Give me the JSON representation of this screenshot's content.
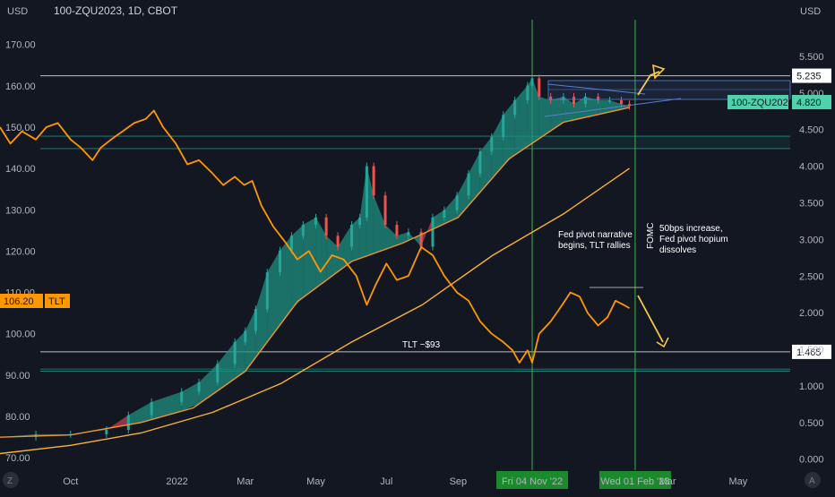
{
  "header": {
    "symbol_title": "100-ZQU2023, 1D, CBOT",
    "left_currency": "USD",
    "right_currency": "USD",
    "corner_left": "Z",
    "corner_right": "A"
  },
  "colors": {
    "background": "#131722",
    "tlt_line": "#ff9800",
    "ma_slow": "#f9b233",
    "ma_fast": "#f0952c",
    "candle_up": "#26a69a",
    "candle_down": "#ef5350",
    "ribbon_up": "#1f8f80",
    "ribbon_down": "#c2404a",
    "zq_badge": "#4fd1ab",
    "green_vline": "#3bb54a",
    "channel_blue": "#5b7fd6",
    "arrow_yellow": "#f7c948"
  },
  "chart_data": {
    "type": "line",
    "x_axis": {
      "tick_labels": [
        "Oct",
        "2022",
        "Mar",
        "May",
        "Jul",
        "Sep",
        "Fri 04 Nov '22",
        "Wed 01 Feb '23",
        "Mar",
        "May"
      ],
      "range": [
        "2021-08-01",
        "2023-06-15"
      ]
    },
    "left_axis": {
      "unit": "USD",
      "ticks": [
        "170.00",
        "160.00",
        "150.00",
        "140.00",
        "130.00",
        "120.00",
        "110.00",
        "100.00",
        "90.00",
        "80.00",
        "70.00"
      ],
      "range": [
        67,
        176
      ]
    },
    "right_axis": {
      "unit": "USD",
      "ticks": [
        "5.500",
        "5.000",
        "4.500",
        "4.000",
        "3.500",
        "3.000",
        "2.500",
        "2.000",
        "1.500",
        "1.000",
        "0.500",
        "0.000"
      ],
      "range": [
        -0.15,
        6.0
      ]
    },
    "series": [
      {
        "name": "TLT",
        "axis": "left",
        "last_value": "106.20",
        "points": [
          [
            "2021-08-01",
            150
          ],
          [
            "2021-08-10",
            146
          ],
          [
            "2021-08-20",
            149
          ],
          [
            "2021-09-01",
            147
          ],
          [
            "2021-09-10",
            150
          ],
          [
            "2021-09-20",
            151
          ],
          [
            "2021-10-01",
            147
          ],
          [
            "2021-10-10",
            145
          ],
          [
            "2021-10-20",
            142
          ],
          [
            "2021-10-27",
            145
          ],
          [
            "2021-11-05",
            147
          ],
          [
            "2021-11-15",
            149
          ],
          [
            "2021-11-25",
            151
          ],
          [
            "2021-12-05",
            152
          ],
          [
            "2021-12-12",
            154
          ],
          [
            "2021-12-20",
            150
          ],
          [
            "2021-12-31",
            146
          ],
          [
            "2022-01-10",
            141
          ],
          [
            "2022-01-20",
            142
          ],
          [
            "2022-01-31",
            139
          ],
          [
            "2022-02-10",
            136
          ],
          [
            "2022-02-20",
            138
          ],
          [
            "2022-02-28",
            136
          ],
          [
            "2022-03-07",
            137
          ],
          [
            "2022-03-15",
            131
          ],
          [
            "2022-03-25",
            126
          ],
          [
            "2022-04-05",
            122
          ],
          [
            "2022-04-15",
            118
          ],
          [
            "2022-04-25",
            120
          ],
          [
            "2022-05-05",
            115
          ],
          [
            "2022-05-15",
            119
          ],
          [
            "2022-05-25",
            118
          ],
          [
            "2022-06-05",
            114
          ],
          [
            "2022-06-14",
            107
          ],
          [
            "2022-06-22",
            112
          ],
          [
            "2022-07-01",
            117
          ],
          [
            "2022-07-10",
            113
          ],
          [
            "2022-07-20",
            114
          ],
          [
            "2022-07-31",
            121
          ],
          [
            "2022-08-10",
            119
          ],
          [
            "2022-08-20",
            114
          ],
          [
            "2022-08-31",
            110
          ],
          [
            "2022-09-10",
            108
          ],
          [
            "2022-09-20",
            103
          ],
          [
            "2022-09-30",
            100
          ],
          [
            "2022-10-10",
            98
          ],
          [
            "2022-10-18",
            96
          ],
          [
            "2022-10-24",
            93
          ],
          [
            "2022-10-31",
            96
          ],
          [
            "2022-11-04",
            93
          ],
          [
            "2022-11-10",
            100
          ],
          [
            "2022-11-20",
            103
          ],
          [
            "2022-11-30",
            107
          ],
          [
            "2022-12-07",
            110
          ],
          [
            "2022-12-15",
            109
          ],
          [
            "2022-12-22",
            105
          ],
          [
            "2022-12-31",
            102
          ],
          [
            "2023-01-08",
            104
          ],
          [
            "2023-01-15",
            108
          ],
          [
            "2023-01-22",
            107
          ],
          [
            "2023-01-27",
            106.2
          ]
        ]
      },
      {
        "name": "100-ZQU2023",
        "axis": "right",
        "style": "candles with moving-average ribbon",
        "last_value": "4.820",
        "points": [
          [
            "2021-08-01",
            0.3
          ],
          [
            "2021-09-01",
            0.34
          ],
          [
            "2021-10-01",
            0.34
          ],
          [
            "2021-11-01",
            0.4
          ],
          [
            "2021-11-20",
            0.6
          ],
          [
            "2021-12-10",
            0.78
          ],
          [
            "2022-01-05",
            0.92
          ],
          [
            "2022-01-20",
            1.05
          ],
          [
            "2022-02-05",
            1.3
          ],
          [
            "2022-02-20",
            1.6
          ],
          [
            "2022-03-01",
            1.75
          ],
          [
            "2022-03-10",
            2.05
          ],
          [
            "2022-03-20",
            2.55
          ],
          [
            "2022-03-31",
            2.85
          ],
          [
            "2022-04-10",
            3.05
          ],
          [
            "2022-04-20",
            3.2
          ],
          [
            "2022-05-01",
            3.3
          ],
          [
            "2022-05-10",
            3.05
          ],
          [
            "2022-05-20",
            2.9
          ],
          [
            "2022-06-01",
            3.2
          ],
          [
            "2022-06-08",
            3.3
          ],
          [
            "2022-06-14",
            4.0
          ],
          [
            "2022-06-20",
            3.6
          ],
          [
            "2022-06-30",
            3.2
          ],
          [
            "2022-07-10",
            3.05
          ],
          [
            "2022-07-20",
            3.1
          ],
          [
            "2022-07-31",
            2.9
          ],
          [
            "2022-08-10",
            3.3
          ],
          [
            "2022-08-20",
            3.4
          ],
          [
            "2022-08-31",
            3.6
          ],
          [
            "2022-09-10",
            3.9
          ],
          [
            "2022-09-20",
            4.2
          ],
          [
            "2022-09-30",
            4.4
          ],
          [
            "2022-10-10",
            4.7
          ],
          [
            "2022-10-20",
            4.9
          ],
          [
            "2022-10-31",
            5.1
          ],
          [
            "2022-11-04",
            5.2
          ],
          [
            "2022-11-10",
            4.95
          ],
          [
            "2022-11-20",
            4.9
          ],
          [
            "2022-12-01",
            4.95
          ],
          [
            "2022-12-10",
            4.85
          ],
          [
            "2022-12-20",
            4.95
          ],
          [
            "2022-12-31",
            4.9
          ],
          [
            "2023-01-10",
            4.9
          ],
          [
            "2023-01-20",
            4.85
          ],
          [
            "2023-01-27",
            4.82
          ]
        ]
      }
    ],
    "moving_averages": [
      {
        "axis": "left",
        "role": "slow",
        "points": [
          [
            "2021-08-01",
            71
          ],
          [
            "2021-10-01",
            73
          ],
          [
            "2021-12-01",
            76
          ],
          [
            "2022-02-01",
            81
          ],
          [
            "2022-04-01",
            88
          ],
          [
            "2022-06-01",
            98
          ],
          [
            "2022-08-01",
            107
          ],
          [
            "2022-10-01",
            119
          ],
          [
            "2022-12-01",
            129
          ],
          [
            "2023-01-27",
            140
          ]
        ]
      },
      {
        "axis": "right",
        "role": "fast",
        "points": [
          [
            "2021-08-01",
            0.3
          ],
          [
            "2021-10-01",
            0.33
          ],
          [
            "2021-12-01",
            0.5
          ],
          [
            "2022-01-15",
            0.7
          ],
          [
            "2022-03-01",
            1.2
          ],
          [
            "2022-04-15",
            2.15
          ],
          [
            "2022-06-01",
            2.7
          ],
          [
            "2022-07-15",
            2.95
          ],
          [
            "2022-09-01",
            3.3
          ],
          [
            "2022-10-15",
            4.1
          ],
          [
            "2022-12-01",
            4.6
          ],
          [
            "2023-01-27",
            4.8
          ]
        ]
      }
    ],
    "horizontal_levels": [
      {
        "value": 5.235,
        "label": "5.235",
        "axis": "right",
        "color": "#d1d4dc",
        "labeled": true
      },
      {
        "value": 1.465,
        "label": "1.465",
        "axis": "right",
        "color": "#d1d4dc",
        "labeled": true
      },
      {
        "value": 4.41,
        "axis": "right",
        "color": "#26a69a",
        "labeled": false
      },
      {
        "value": 4.24,
        "axis": "right",
        "color": "#26a69a",
        "labeled": false
      },
      {
        "value": 1.23,
        "axis": "right",
        "color": "#26a69a",
        "labeled": false
      },
      {
        "value": 1.2,
        "axis": "right",
        "color": "#26a69a",
        "labeled": false
      }
    ],
    "vertical_lines": [
      {
        "date": "2022-11-04",
        "label": "Fri 04 Nov '22"
      },
      {
        "date": "2023-02-01",
        "label": "Wed 01 Feb '23"
      }
    ],
    "annotations": [
      {
        "text": [
          "Fed pivot narrative",
          "begins, TLT rallies"
        ]
      },
      {
        "text": [
          "FOMC"
        ],
        "rotated": true
      },
      {
        "text": [
          "50bps increase,",
          "Fed pivot hopium",
          "dissolves"
        ]
      },
      {
        "text": [
          "TLT ~$93"
        ]
      }
    ],
    "price_labels": [
      {
        "series": "100-ZQU2023",
        "name": "100-ZQU2023",
        "value": "4.820"
      },
      {
        "series": "TLT",
        "name": "TLT",
        "value": "106.20"
      }
    ],
    "grid": false,
    "legend": "none"
  }
}
